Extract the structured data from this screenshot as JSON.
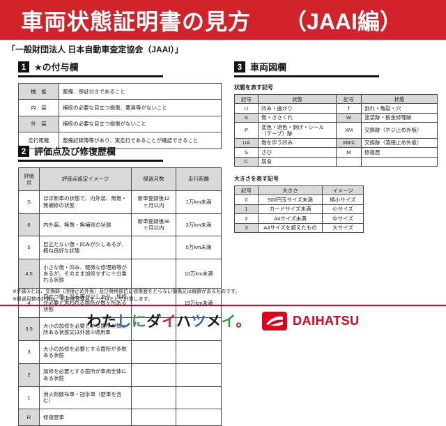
{
  "banner": {
    "title": "車両状態証明書の見方",
    "edition": "（JAAI編）"
  },
  "subtitle": "「一般財団法人 日本自動車査定協会（JAAI）」",
  "section1": {
    "number": "1",
    "title": "★の付与欄",
    "rows": [
      {
        "label": "機　能",
        "desc": "整備、保証付きであること"
      },
      {
        "label": "内　装",
        "desc": "補修の必要な目立つ損傷、悪臭等がないこと"
      },
      {
        "label": "外　装",
        "desc": "補修の必要な目立つ損傷がないこと"
      },
      {
        "label": "走行距離",
        "desc": "整備記録簿等があり、実走行であることが確認できること"
      }
    ]
  },
  "section2": {
    "number": "2",
    "title": "評価点及び修復歴欄",
    "headers": [
      "評価点",
      "評価点設定イメージ",
      "経過月数",
      "走行距離"
    ],
    "rows": [
      [
        "S",
        "ほぼ新車の状態で、内外装、無傷・無補修の状態",
        "新車登録後12ヶ月以内",
        "1万km未満"
      ],
      [
        "6",
        "内外装、無傷・無補修の状態",
        "新車登録後36ヶ月以内",
        "3万km未満"
      ],
      [
        "5",
        "目立たない傷・凹みが少しあるが、概ね良好な状態",
        "",
        "5万km未満"
      ],
      [
        "4.5",
        "小さな傷・凹み、軽微な修理跡等があるが、そのまま加修せずに十分乗れる状態",
        "",
        "10万km未満"
      ],
      [
        "4",
        "目立つ傷・凹み等が少しあり、加修が必要と思われる箇所が数ヶ所ある状態",
        "",
        "15万km未満"
      ],
      [
        "3.5",
        "大小の加修を必要とする箇所が数ヶ所ある状態又は外装②適用車",
        "",
        ""
      ],
      [
        "3",
        "大小の加修を必要とする箇所が多数ある状態",
        "",
        ""
      ],
      [
        "2",
        "加修を必要とする箇所が車両全体にある状態",
        "",
        ""
      ],
      [
        "1",
        "消火剤散布車・冠水車（歴車を含む）",
        "",
        ""
      ],
      [
        "R",
        "修復歴車",
        "",
        ""
      ]
    ]
  },
  "section3": {
    "number": "3",
    "title": "車両図欄",
    "state_table": {
      "title": "状態を表す記号",
      "headers": [
        "記号",
        "状態",
        "記号",
        "状態"
      ],
      "rows": [
        [
          "U",
          "凹み・曲がり",
          "T",
          "割れ・亀裂・穴"
        ],
        [
          "A",
          "傷・ささくれ",
          "W",
          "塗装跡・板金修理跡"
        ],
        [
          "P",
          "変色・退色・剥げ・シール（テープ）跡",
          "XM",
          "交換跡（ネジ止め外板）"
        ],
        [
          "UA",
          "傷を伴う凹み",
          "XM②",
          "交換跡（溶接止め外板）"
        ],
        [
          "S",
          "さび",
          "M",
          "修復歴"
        ],
        [
          "C",
          "腐食",
          "",
          ""
        ]
      ]
    },
    "size_table": {
      "title": "大きさを表す記号",
      "headers": [
        "記号",
        "大きさ",
        "イメージ"
      ],
      "rows": [
        [
          "0",
          "500円玉サイズ未満",
          "極小サイズ"
        ],
        [
          "1",
          "カードサイズ未満",
          "小サイズ"
        ],
        [
          "2",
          "A4サイズ未満",
          "中サイズ"
        ],
        [
          "3",
          "A4サイズを超えたもの",
          "大サイズ"
        ]
      ]
    }
  },
  "footnotes": [
    "※外装②とは、交換跡（溶接止め外板）及び骨格部位に修復歴をとらない損傷又は痕跡があるものです。",
    "※経過月数の計算は、初年度登録月を一ヶ月として計算します。"
  ],
  "footer": {
    "slogan": "わたしにダイハツメイ。",
    "brand": "DAIHATSU",
    "slogan_colors": [
      "#1a1a1a",
      "#1a1a1a",
      "#2b6cb8",
      "#2f9e44",
      "#1a1a1a",
      "#d2232a",
      "#1a1a1a",
      "#2b6cb8",
      "#1a1a1a",
      "#2f9e44",
      "#d2232a"
    ]
  },
  "colors": {
    "accent_red": "#d2232a",
    "table_header_gray": "#d9d9d9"
  }
}
